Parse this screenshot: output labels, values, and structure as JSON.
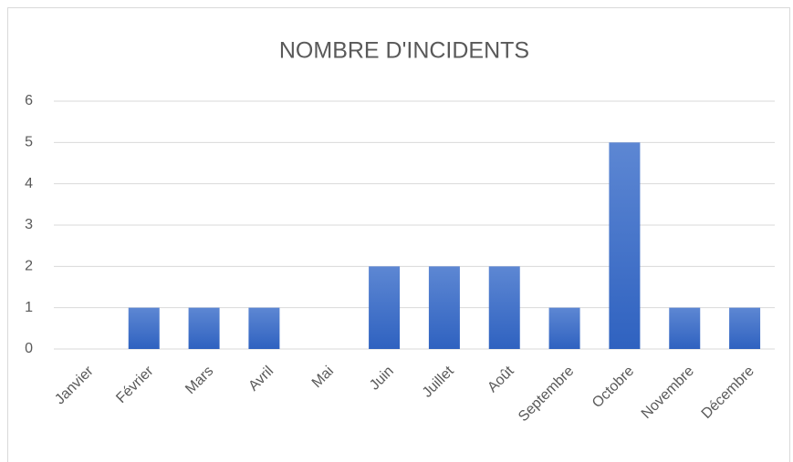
{
  "chart_data": {
    "type": "bar",
    "title": "NOMBRE D'INCIDENTS",
    "categories": [
      "Janvier",
      "Février",
      "Mars",
      "Avril",
      "Mai",
      "Juin",
      "Juillet",
      "Août",
      "Septembre",
      "Octobre",
      "Novembre",
      "Décembre"
    ],
    "values": [
      0,
      1,
      1,
      1,
      0,
      2,
      2,
      2,
      1,
      5,
      1,
      1
    ],
    "color": "#4472c4",
    "ylim": [
      0,
      6
    ],
    "yticks": [
      0,
      1,
      2,
      3,
      4,
      5,
      6
    ],
    "grid": true
  }
}
